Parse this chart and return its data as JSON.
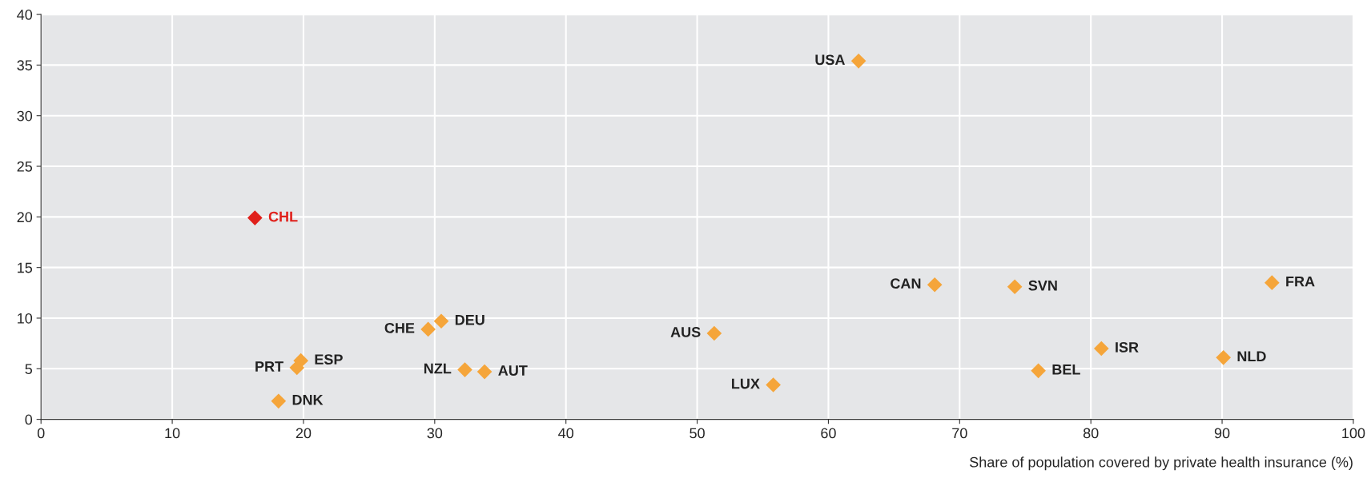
{
  "chart_data": {
    "type": "scatter",
    "xlabel": "Share of population covered by private health insurance (%)",
    "xlim": [
      0,
      100
    ],
    "xticks": [
      0,
      10,
      20,
      30,
      40,
      50,
      60,
      70,
      80,
      90,
      100
    ],
    "ylim": [
      0,
      40
    ],
    "yticks": [
      0,
      5,
      10,
      15,
      20,
      25,
      30,
      35,
      40
    ],
    "grid": true,
    "marker": "diamond",
    "legend": false,
    "series": [
      {
        "name": "USA",
        "color": "#f5a53a",
        "x": [
          62.3
        ],
        "values": [
          35.4
        ]
      },
      {
        "name": "CHL",
        "color": "#e0201b",
        "x": [
          16.3
        ],
        "values": [
          19.9
        ]
      },
      {
        "name": "CAN",
        "color": "#f5a53a",
        "x": [
          68.1
        ],
        "values": [
          13.3
        ]
      },
      {
        "name": "SVN",
        "color": "#f5a53a",
        "x": [
          74.2
        ],
        "values": [
          13.1
        ]
      },
      {
        "name": "FRA",
        "color": "#f5a53a",
        "x": [
          93.8
        ],
        "values": [
          13.5
        ]
      },
      {
        "name": "DEU",
        "color": "#f5a53a",
        "x": [
          30.5
        ],
        "values": [
          9.7
        ]
      },
      {
        "name": "CHE",
        "color": "#f5a53a",
        "x": [
          29.5
        ],
        "values": [
          8.9
        ]
      },
      {
        "name": "AUS",
        "color": "#f5a53a",
        "x": [
          51.3
        ],
        "values": [
          8.5
        ]
      },
      {
        "name": "ESP",
        "color": "#f5a53a",
        "x": [
          19.8
        ],
        "values": [
          5.8
        ]
      },
      {
        "name": "PRT",
        "color": "#f5a53a",
        "x": [
          19.5
        ],
        "values": [
          5.1
        ]
      },
      {
        "name": "NZL",
        "color": "#f5a53a",
        "x": [
          32.3
        ],
        "values": [
          4.9
        ]
      },
      {
        "name": "AUT",
        "color": "#f5a53a",
        "x": [
          33.8
        ],
        "values": [
          4.7
        ]
      },
      {
        "name": "ISR",
        "color": "#f5a53a",
        "x": [
          80.8
        ],
        "values": [
          7.0
        ]
      },
      {
        "name": "NLD",
        "color": "#f5a53a",
        "x": [
          90.1
        ],
        "values": [
          6.1
        ]
      },
      {
        "name": "BEL",
        "color": "#f5a53a",
        "x": [
          76.0
        ],
        "values": [
          4.8
        ]
      },
      {
        "name": "LUX",
        "color": "#f5a53a",
        "x": [
          55.8
        ],
        "values": [
          3.4
        ]
      },
      {
        "name": "DNK",
        "color": "#f5a53a",
        "x": [
          18.1
        ],
        "values": [
          1.8
        ]
      }
    ]
  }
}
